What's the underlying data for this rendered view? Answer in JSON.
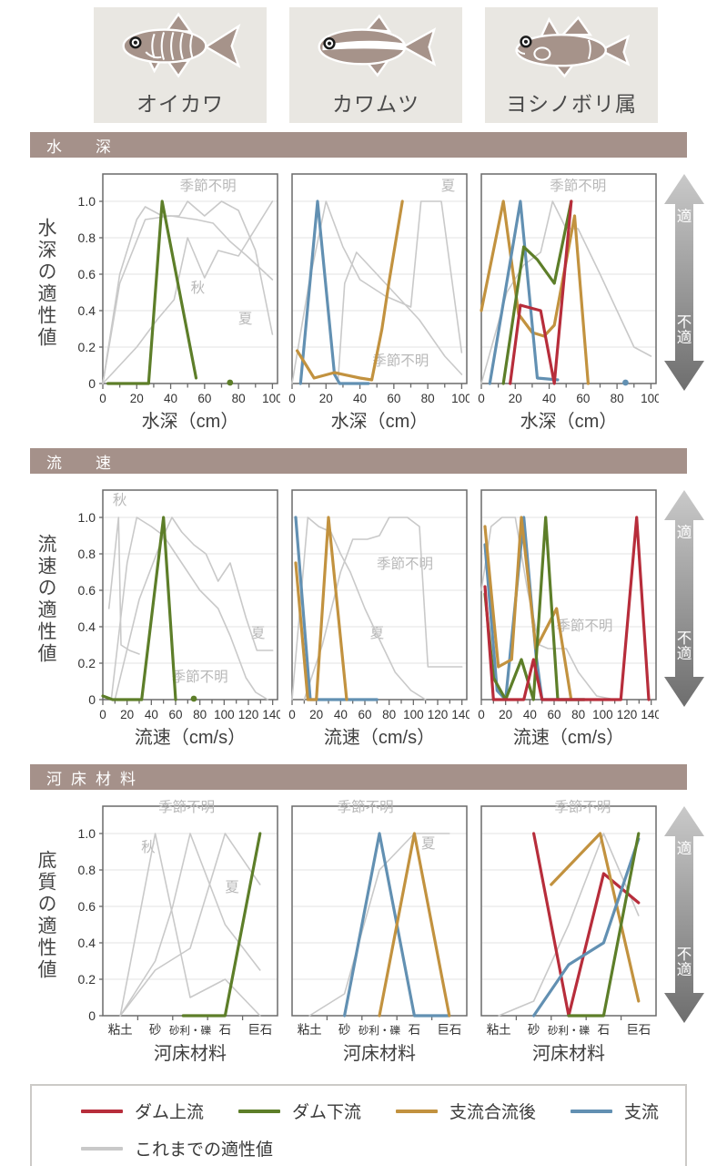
{
  "fish": [
    {
      "name": "オイカワ",
      "icon": "oikawa-fish-icon"
    },
    {
      "name": "カワムツ",
      "icon": "kawamutsu-fish-icon"
    },
    {
      "name": "ヨシノボリ属",
      "icon": "yoshinobori-fish-icon"
    }
  ],
  "arrow": {
    "top": "適",
    "bottom": "不適"
  },
  "colors": {
    "dam_upstream": "#b72d3b",
    "dam_downstream": "#5d7e29",
    "tributary_confluence": "#c2923f",
    "tributary": "#6290b2",
    "previous": "#c9c9c9",
    "header_bg": "#a5918a",
    "grid": "#e3e3e3",
    "frame": "#6a6a6a",
    "tick_text": "#333333",
    "annotation": "#b8b8b8",
    "axis_title": "#3f3f3f"
  },
  "legend": {
    "items": [
      {
        "label": "ダム上流",
        "color_key": "dam_upstream"
      },
      {
        "label": "ダム下流",
        "color_key": "dam_downstream"
      },
      {
        "label": "支流合流後",
        "color_key": "tributary_confluence"
      },
      {
        "label": "支流",
        "color_key": "tributary"
      }
    ],
    "row2": [
      {
        "label": "これまでの適性値",
        "color_key": "previous"
      }
    ]
  },
  "sections": [
    {
      "title": "水　深",
      "ylabel": "水深の適性値",
      "xlabel": "水深（cm）",
      "xaxis": {
        "type": "numeric",
        "min": 0,
        "max": 103,
        "tick_max": 100,
        "label_step": 20,
        "minor_step": 10
      }
    },
    {
      "title": "流　速",
      "ylabel": "流速の適性値",
      "xlabel": "流速（cm/s）",
      "xaxis": {
        "type": "numeric",
        "min": 0,
        "max": 144,
        "tick_max": 140,
        "label_step": 20,
        "minor_step": 10
      }
    },
    {
      "title": "河床材料",
      "ylabel": "底質の適性値",
      "xlabel": "河床材料",
      "xaxis": {
        "type": "category",
        "categories": [
          "粘土",
          "砂",
          "砂利・礫",
          "石",
          "巨石"
        ]
      }
    }
  ],
  "yaxis": {
    "ticks": [
      0,
      0.2,
      0.4,
      0.6,
      0.8,
      1.0
    ],
    "tick_labels": [
      "0",
      "0.2",
      "0.4",
      "0.6",
      "0.8",
      "1.0"
    ],
    "ymax": 1.15
  },
  "chart_data": [
    {
      "type": "line",
      "section": 0,
      "fish": "オイカワ",
      "show_y_labels": true,
      "series": [
        {
          "name": "これまでの適性値(季節不明)",
          "color_key": "previous",
          "x": [
            0,
            10,
            20,
            25,
            35,
            45,
            50,
            60,
            70,
            80,
            90,
            100
          ],
          "y": [
            0,
            0.6,
            0.9,
            0.97,
            0.92,
            0.92,
            1.0,
            0.92,
            1.0,
            0.95,
            0.73,
            0.27
          ]
        },
        {
          "name": "これまでの適性値(秋)",
          "color_key": "previous",
          "x": [
            0,
            20,
            32,
            42,
            50,
            60,
            68,
            80,
            100
          ],
          "y": [
            0,
            0.2,
            0.35,
            0.46,
            0.8,
            0.58,
            0.73,
            0.7,
            1.0
          ]
        },
        {
          "name": "これまでの適性値(夏)",
          "color_key": "previous",
          "x": [
            0,
            10,
            25,
            40,
            55,
            65,
            75,
            85,
            100
          ],
          "y": [
            0,
            0.55,
            0.9,
            0.92,
            0.9,
            0.88,
            0.78,
            0.7,
            0.57
          ]
        },
        {
          "name": "ダム下流",
          "color_key": "dam_downstream",
          "x": [
            3,
            27,
            35,
            55
          ],
          "y": [
            0,
            0,
            1.0,
            0.03
          ],
          "dot": [
            75,
            0
          ]
        }
      ],
      "annotations": [
        {
          "text": "季節不明",
          "x": 62,
          "y": 1.06
        },
        {
          "text": "秋",
          "x": 56,
          "y": 0.5
        },
        {
          "text": "夏",
          "x": 84,
          "y": 0.33
        }
      ]
    },
    {
      "type": "line",
      "section": 0,
      "fish": "カワムツ",
      "show_y_labels": false,
      "series": [
        {
          "name": "これまでの適性値(夏)",
          "color_key": "previous",
          "x": [
            0,
            10,
            20,
            30,
            40,
            55,
            70,
            76,
            88,
            100
          ],
          "y": [
            0,
            0.55,
            1.0,
            0.75,
            0.57,
            0.48,
            0.42,
            1.0,
            1.0,
            0.17
          ]
        },
        {
          "name": "これまでの適性値(季節不明)",
          "color_key": "previous",
          "x": [
            27,
            31,
            38,
            48,
            60,
            75,
            90,
            100
          ],
          "y": [
            0,
            0.55,
            0.72,
            0.62,
            0.5,
            0.35,
            0.15,
            0.05
          ]
        },
        {
          "name": "支流",
          "color_key": "tributary",
          "x": [
            5,
            15,
            25,
            28,
            45
          ],
          "y": [
            0,
            1.0,
            0.05,
            0,
            0
          ]
        },
        {
          "name": "支流合流後",
          "color_key": "tributary_confluence",
          "x": [
            3,
            13,
            25,
            40,
            47,
            53,
            57,
            65
          ],
          "y": [
            0.18,
            0.03,
            0.06,
            0.03,
            0.02,
            0.3,
            0.55,
            1.0
          ]
        }
      ],
      "annotations": [
        {
          "text": "夏",
          "x": 92,
          "y": 1.06
        },
        {
          "text": "季節不明",
          "x": 64,
          "y": 0.1
        }
      ]
    },
    {
      "type": "line",
      "section": 0,
      "fish": "ヨシノボリ属",
      "show_y_labels": false,
      "series": [
        {
          "name": "これまでの適性値(季節不明)",
          "color_key": "previous",
          "x": [
            0,
            15,
            25,
            35,
            42,
            50,
            57,
            70,
            80,
            90,
            100
          ],
          "y": [
            0,
            0.5,
            0.65,
            0.72,
            1.0,
            0.85,
            0.85,
            0.6,
            0.4,
            0.2,
            0.15
          ]
        },
        {
          "name": "支流合流後",
          "color_key": "tributary_confluence",
          "x": [
            0,
            13,
            22,
            30,
            37,
            43,
            55,
            63
          ],
          "y": [
            0.4,
            1.0,
            0.38,
            0.28,
            0.26,
            0.32,
            0.92,
            0
          ]
        },
        {
          "name": "支流",
          "color_key": "tributary",
          "x": [
            5,
            23,
            33,
            45
          ],
          "y": [
            0,
            1.0,
            0.03,
            0.02
          ],
          "dot": [
            85,
            0
          ]
        },
        {
          "name": "ダム下流",
          "color_key": "dam_downstream",
          "x": [
            13,
            25,
            33,
            43,
            53
          ],
          "y": [
            0,
            0.75,
            0.68,
            0.55,
            1.0
          ]
        },
        {
          "name": "ダム上流",
          "color_key": "dam_upstream",
          "x": [
            17,
            23,
            35,
            43,
            53
          ],
          "y": [
            0,
            0.43,
            0.4,
            0,
            1.0
          ]
        }
      ],
      "annotations": [
        {
          "text": "季節不明",
          "x": 57,
          "y": 1.06
        }
      ]
    },
    {
      "type": "line",
      "section": 1,
      "fish": "オイカワ",
      "show_y_labels": true,
      "series": [
        {
          "name": "これまでの適性値(秋)",
          "color_key": "previous",
          "x": [
            5,
            13,
            15,
            22,
            30
          ],
          "y": [
            0.5,
            1.0,
            0.3,
            0.27,
            0.25
          ]
        },
        {
          "name": "これまでの適性値(夏)",
          "color_key": "previous",
          "x": [
            7,
            20,
            28,
            40,
            50,
            57,
            65,
            75,
            85,
            95,
            105,
            118,
            127,
            140
          ],
          "y": [
            0,
            0.75,
            1.0,
            0.95,
            0.9,
            1.0,
            0.92,
            0.85,
            0.8,
            0.65,
            0.75,
            0.45,
            0.27,
            0.27
          ]
        },
        {
          "name": "これまでの適性値(季節不明)",
          "color_key": "previous",
          "x": [
            10,
            30,
            50,
            65,
            80,
            95,
            105,
            118,
            126,
            136
          ],
          "y": [
            0,
            0.55,
            0.9,
            0.75,
            0.6,
            0.5,
            0.35,
            0.12,
            0.04,
            0
          ]
        },
        {
          "name": "ダム下流",
          "color_key": "dam_downstream",
          "x": [
            0,
            8,
            32,
            50,
            60
          ],
          "y": [
            0.02,
            0,
            0,
            1.0,
            0
          ],
          "dot": [
            75,
            0
          ]
        }
      ],
      "annotations": [
        {
          "text": "秋",
          "x": 14,
          "y": 1.07
        },
        {
          "text": "夏",
          "x": 128,
          "y": 0.34
        },
        {
          "text": "季節不明",
          "x": 80,
          "y": 0.1
        }
      ]
    },
    {
      "type": "line",
      "section": 1,
      "fish": "カワムツ",
      "show_y_labels": false,
      "series": [
        {
          "name": "これまでの適性値(夏)",
          "color_key": "previous",
          "x": [
            0,
            13,
            22,
            32,
            40,
            48,
            60,
            72,
            85,
            98,
            110
          ],
          "y": [
            0,
            1.0,
            0.95,
            0.92,
            0.8,
            0.7,
            0.5,
            0.33,
            0.15,
            0.05,
            0
          ]
        },
        {
          "name": "これまでの適性値(季節不明)",
          "color_key": "previous",
          "x": [
            10,
            25,
            40,
            50,
            62,
            72,
            80,
            95,
            105,
            112,
            140
          ],
          "y": [
            0,
            0.3,
            0.7,
            0.88,
            0.88,
            0.9,
            1.0,
            1.0,
            0.95,
            0.18,
            0.18
          ]
        },
        {
          "name": "支流",
          "color_key": "tributary",
          "x": [
            3,
            15,
            70
          ],
          "y": [
            1.0,
            0,
            0
          ]
        },
        {
          "name": "支流合流後",
          "color_key": "tributary_confluence",
          "x": [
            3,
            13,
            20,
            30,
            45
          ],
          "y": [
            0.75,
            0,
            0,
            1.0,
            0
          ]
        }
      ],
      "annotations": [
        {
          "text": "季節不明",
          "x": 93,
          "y": 0.72
        },
        {
          "text": "夏",
          "x": 70,
          "y": 0.34
        }
      ]
    },
    {
      "type": "line",
      "section": 1,
      "fish": "ヨシノボリ属",
      "show_y_labels": false,
      "series": [
        {
          "name": "これまでの適性値(季節不明)",
          "color_key": "previous",
          "x": [
            0,
            8,
            17,
            28,
            38,
            48,
            55,
            70,
            80,
            95,
            110
          ],
          "y": [
            0.6,
            0.95,
            1.0,
            1.0,
            0.6,
            0.3,
            0.28,
            0.28,
            0.15,
            0.02,
            0
          ]
        },
        {
          "name": "支流",
          "color_key": "tributary",
          "x": [
            3,
            13,
            20,
            35,
            45,
            50,
            85
          ],
          "y": [
            0.85,
            0.05,
            0,
            1.0,
            0.25,
            0,
            0
          ]
        },
        {
          "name": "支流合流後",
          "color_key": "tributary_confluence",
          "x": [
            3,
            14,
            25,
            33,
            45,
            62,
            74
          ],
          "y": [
            0.95,
            0.18,
            0.22,
            1.0,
            0.28,
            0.5,
            0
          ]
        },
        {
          "name": "ダム下流",
          "color_key": "dam_downstream",
          "x": [
            3,
            10,
            20,
            33,
            43,
            53,
            63,
            85
          ],
          "y": [
            0.58,
            0.12,
            0,
            0.22,
            0,
            1.0,
            0,
            0
          ]
        },
        {
          "name": "ダム上流",
          "color_key": "dam_upstream",
          "x": [
            3,
            10,
            35,
            43,
            50,
            115,
            128,
            138
          ],
          "y": [
            0.62,
            0,
            0,
            0.22,
            0,
            0,
            1.0,
            0
          ]
        }
      ],
      "annotations": [
        {
          "text": "季節不明",
          "x": 85,
          "y": 0.38
        }
      ]
    },
    {
      "type": "line",
      "section": 2,
      "fish": "オイカワ",
      "show_y_labels": true,
      "series": [
        {
          "name": "これまでの適性値(秋)",
          "color_key": "previous",
          "x": [
            0,
            1,
            2,
            3,
            4
          ],
          "y": [
            0,
            1.0,
            0.1,
            0.2,
            0
          ]
        },
        {
          "name": "これまでの適性値(季節不明)",
          "color_key": "previous",
          "x": [
            0,
            1,
            1.5,
            2,
            3,
            4
          ],
          "y": [
            0,
            0.3,
            0.6,
            1.0,
            0.5,
            0.25
          ]
        },
        {
          "name": "これまでの適性値(夏)",
          "color_key": "previous",
          "x": [
            0,
            1,
            2,
            3,
            4
          ],
          "y": [
            0,
            0.25,
            0.37,
            1.0,
            0.72
          ]
        },
        {
          "name": "ダム下流",
          "color_key": "dam_downstream",
          "x": [
            1.8,
            3,
            4
          ],
          "y": [
            0,
            0,
            1.0
          ]
        }
      ],
      "annotations": [
        {
          "text": "季節不明",
          "x": 1.9,
          "y": 1.12
        },
        {
          "text": "秋",
          "x": 0.8,
          "y": 0.9
        },
        {
          "text": "夏",
          "x": 3.2,
          "y": 0.68
        }
      ]
    },
    {
      "type": "line",
      "section": 2,
      "fish": "カワムツ",
      "show_y_labels": false,
      "series": [
        {
          "name": "これまでの適性値(季節不明)",
          "color_key": "previous",
          "x": [
            0,
            1,
            2,
            3,
            4
          ],
          "y": [
            0,
            0.12,
            0.8,
            1.0,
            1.0
          ]
        },
        {
          "name": "支流",
          "color_key": "tributary",
          "x": [
            1,
            2,
            3,
            4
          ],
          "y": [
            0,
            1.0,
            0,
            0
          ]
        },
        {
          "name": "支流合流後",
          "color_key": "tributary_confluence",
          "x": [
            2,
            3,
            4
          ],
          "y": [
            0,
            1.0,
            0
          ]
        }
      ],
      "annotations": [
        {
          "text": "季節不明",
          "x": 1.6,
          "y": 1.12
        },
        {
          "text": "夏",
          "x": 3.4,
          "y": 0.92
        }
      ]
    },
    {
      "type": "line",
      "section": 2,
      "fish": "ヨシノボリ属",
      "show_y_labels": false,
      "series": [
        {
          "name": "これまでの適性値(季節不明)",
          "color_key": "previous",
          "x": [
            0,
            1,
            2,
            3,
            4
          ],
          "y": [
            0,
            0.08,
            0.5,
            1.0,
            0.55
          ]
        },
        {
          "name": "ダム上流",
          "color_key": "dam_upstream",
          "x": [
            1,
            2,
            3,
            4
          ],
          "y": [
            1.0,
            0,
            0.78,
            0.62
          ]
        },
        {
          "name": "支流合流後",
          "color_key": "tributary_confluence",
          "x": [
            1.5,
            2.9,
            4
          ],
          "y": [
            0.72,
            1.0,
            0.08
          ]
        },
        {
          "name": "支流",
          "color_key": "tributary",
          "x": [
            1,
            2,
            3,
            4
          ],
          "y": [
            0,
            0.28,
            0.4,
            0.97
          ]
        },
        {
          "name": "ダム下流",
          "color_key": "dam_downstream",
          "x": [
            2,
            3,
            4
          ],
          "y": [
            0,
            0,
            1.0
          ]
        }
      ],
      "annotations": [
        {
          "text": "季節不明",
          "x": 2.4,
          "y": 1.12
        }
      ]
    }
  ]
}
